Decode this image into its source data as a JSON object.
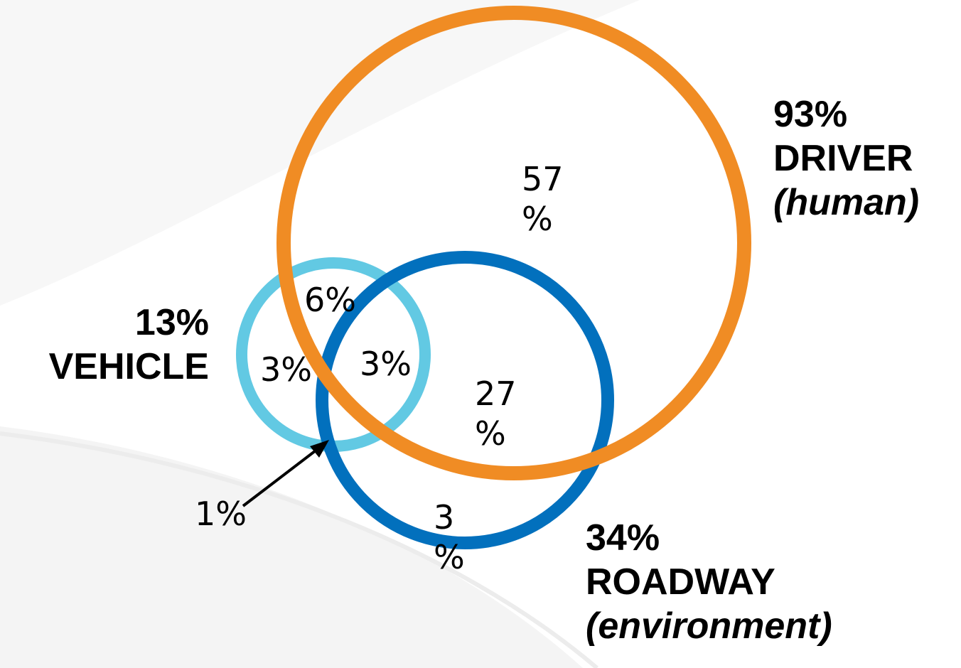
{
  "diagram": {
    "sets": [
      {
        "id": "driver",
        "percent": "93%",
        "name": "DRIVER",
        "qualifier": "(human)",
        "color": "#F08C24"
      },
      {
        "id": "vehicle",
        "percent": "13%",
        "name": "VEHICLE",
        "color": "#62C9E3"
      },
      {
        "id": "roadway",
        "percent": "34%",
        "name": "ROADWAY",
        "qualifier": "(environment)",
        "color": "#0270BD"
      }
    ],
    "regions": {
      "driver_only": [
        "57",
        "%"
      ],
      "driver_vehicle": "6%",
      "vehicle_only": "3%",
      "all_three": "3%",
      "driver_roadway": [
        "27",
        "%"
      ],
      "roadway_only": [
        "3",
        "%"
      ],
      "vehicle_roadway": "1%"
    }
  }
}
